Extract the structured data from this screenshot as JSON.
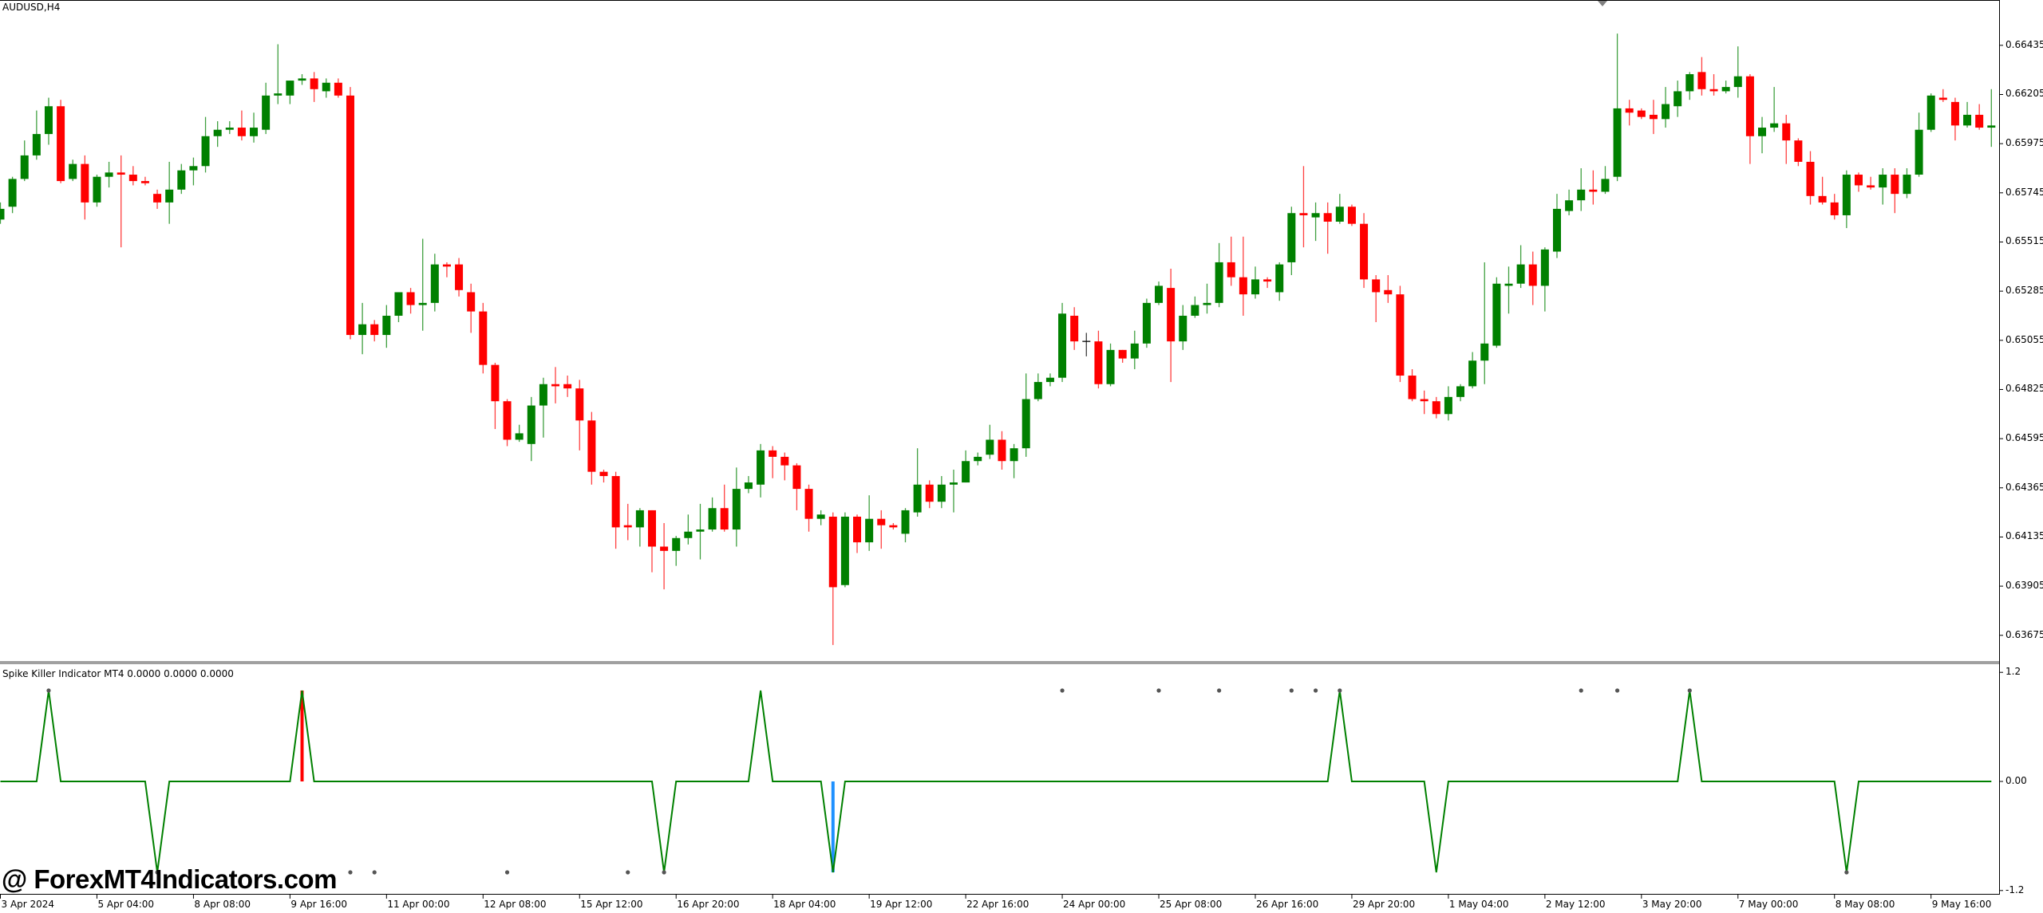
{
  "header": {
    "symbol_timeframe": "AUDUSD,H4"
  },
  "indicator": {
    "title": "Spike Killer Indicator MT4 0.0000 0.0000 0.0000"
  },
  "watermark": "@ ForexMT4Indicators.com",
  "colors": {
    "bull": "#008000",
    "bear": "#ff0000",
    "doji": "#000000",
    "indicator_line": "#008000",
    "hist_up": "#ff0000",
    "hist_down": "#1e90ff",
    "dots": "#555555",
    "axis": "#000000"
  },
  "chart_data": [
    {
      "type": "candlestick",
      "title": "AUDUSD,H4",
      "ylim": [
        0.63551,
        0.66647
      ],
      "grid": false,
      "price_ticks": [
        "0.66435",
        "0.66205",
        "0.65975",
        "0.65745",
        "0.65515",
        "0.65285",
        "0.65055",
        "0.64825",
        "0.64595",
        "0.64365",
        "0.64135",
        "0.63905",
        "0.63675"
      ],
      "time_labels": [
        "3 Apr 2024",
        "5 Apr 04:00",
        "8 Apr 08:00",
        "9 Apr 16:00",
        "11 Apr 00:00",
        "12 Apr 08:00",
        "15 Apr 12:00",
        "16 Apr 20:00",
        "18 Apr 04:00",
        "19 Apr 12:00",
        "22 Apr 16:00",
        "24 Apr 00:00",
        "25 Apr 08:00",
        "26 Apr 16:00",
        "29 Apr 20:00",
        "1 May 04:00",
        "2 May 12:00",
        "3 May 20:00",
        "7 May 00:00",
        "8 May 08:00",
        "9 May 16:00"
      ],
      "time_label_every_n_bars": 8,
      "ohlc_order": [
        "open",
        "high",
        "low",
        "close"
      ],
      "ohlc": [
        [
          0.6562,
          0.657,
          0.656,
          0.6567
        ],
        [
          0.6568,
          0.6582,
          0.6565,
          0.6581
        ],
        [
          0.6581,
          0.6599,
          0.658,
          0.6592
        ],
        [
          0.6592,
          0.6613,
          0.659,
          0.6602
        ],
        [
          0.6602,
          0.6619,
          0.6597,
          0.6615
        ],
        [
          0.6615,
          0.6618,
          0.6579,
          0.658
        ],
        [
          0.6581,
          0.659,
          0.658,
          0.6588
        ],
        [
          0.6588,
          0.6592,
          0.6562,
          0.657
        ],
        [
          0.657,
          0.6583,
          0.6568,
          0.6582
        ],
        [
          0.6582,
          0.6589,
          0.6577,
          0.6584
        ],
        [
          0.6584,
          0.6592,
          0.6549,
          0.6583
        ],
        [
          0.6583,
          0.6587,
          0.6578,
          0.658
        ],
        [
          0.658,
          0.6582,
          0.6578,
          0.6579
        ],
        [
          0.6574,
          0.6576,
          0.6567,
          0.657
        ],
        [
          0.657,
          0.6589,
          0.656,
          0.6576
        ],
        [
          0.6576,
          0.6588,
          0.6574,
          0.6585
        ],
        [
          0.6585,
          0.6591,
          0.6578,
          0.6587
        ],
        [
          0.6587,
          0.661,
          0.6584,
          0.6601
        ],
        [
          0.6601,
          0.6608,
          0.6596,
          0.6604
        ],
        [
          0.6604,
          0.6608,
          0.6602,
          0.6605
        ],
        [
          0.6605,
          0.6613,
          0.6599,
          0.6601
        ],
        [
          0.6601,
          0.6612,
          0.6598,
          0.6605
        ],
        [
          0.6604,
          0.6626,
          0.6602,
          0.662
        ],
        [
          0.662,
          0.6644,
          0.6616,
          0.6621
        ],
        [
          0.662,
          0.6627,
          0.6616,
          0.6627
        ],
        [
          0.6627,
          0.663,
          0.6625,
          0.6628
        ],
        [
          0.6628,
          0.6631,
          0.6617,
          0.6623
        ],
        [
          0.6622,
          0.6628,
          0.6619,
          0.6626
        ],
        [
          0.6626,
          0.6628,
          0.6619,
          0.662
        ],
        [
          0.662,
          0.6624,
          0.6506,
          0.6508
        ],
        [
          0.6508,
          0.6523,
          0.6499,
          0.6513
        ],
        [
          0.6513,
          0.6515,
          0.6505,
          0.6508
        ],
        [
          0.6508,
          0.6522,
          0.6502,
          0.6517
        ],
        [
          0.6517,
          0.6528,
          0.6514,
          0.6528
        ],
        [
          0.6528,
          0.653,
          0.6518,
          0.6522
        ],
        [
          0.6522,
          0.6553,
          0.651,
          0.6523
        ],
        [
          0.6523,
          0.6546,
          0.6519,
          0.6541
        ],
        [
          0.6541,
          0.6542,
          0.6535,
          0.654
        ],
        [
          0.6541,
          0.6544,
          0.6526,
          0.6529
        ],
        [
          0.6528,
          0.6532,
          0.6509,
          0.6519
        ],
        [
          0.6519,
          0.6523,
          0.649,
          0.6494
        ],
        [
          0.6494,
          0.6495,
          0.6464,
          0.6477
        ],
        [
          0.6477,
          0.6478,
          0.6456,
          0.6459
        ],
        [
          0.6459,
          0.6466,
          0.6458,
          0.6462
        ],
        [
          0.6457,
          0.6479,
          0.6449,
          0.6475
        ],
        [
          0.6475,
          0.6488,
          0.646,
          0.6485
        ],
        [
          0.6485,
          0.6493,
          0.6476,
          0.6484
        ],
        [
          0.6485,
          0.6489,
          0.6479,
          0.6483
        ],
        [
          0.6483,
          0.6487,
          0.6454,
          0.6468
        ],
        [
          0.6468,
          0.6472,
          0.6438,
          0.6444
        ],
        [
          0.6444,
          0.6445,
          0.6439,
          0.6442
        ],
        [
          0.6442,
          0.6444,
          0.6408,
          0.6418
        ],
        [
          0.6419,
          0.6429,
          0.6412,
          0.6418
        ],
        [
          0.6418,
          0.6427,
          0.6409,
          0.6426
        ],
        [
          0.6426,
          0.6426,
          0.6397,
          0.6409
        ],
        [
          0.6409,
          0.642,
          0.6389,
          0.6407
        ],
        [
          0.6407,
          0.6414,
          0.64,
          0.6413
        ],
        [
          0.6413,
          0.6424,
          0.641,
          0.6416
        ],
        [
          0.6416,
          0.6429,
          0.6403,
          0.6417
        ],
        [
          0.6417,
          0.6432,
          0.6416,
          0.6427
        ],
        [
          0.6427,
          0.6438,
          0.6416,
          0.6417
        ],
        [
          0.6417,
          0.6446,
          0.6409,
          0.6436
        ],
        [
          0.6436,
          0.6442,
          0.6434,
          0.6439
        ],
        [
          0.6438,
          0.6457,
          0.6432,
          0.6454
        ],
        [
          0.6454,
          0.6456,
          0.6441,
          0.6451
        ],
        [
          0.6451,
          0.6453,
          0.644,
          0.6447
        ],
        [
          0.6447,
          0.6448,
          0.6426,
          0.6436
        ],
        [
          0.6436,
          0.6438,
          0.6416,
          0.6422
        ],
        [
          0.6422,
          0.6426,
          0.6419,
          0.6424
        ],
        [
          0.6423,
          0.6425,
          0.6363,
          0.639
        ],
        [
          0.6391,
          0.6425,
          0.639,
          0.6423
        ],
        [
          0.6423,
          0.6424,
          0.6406,
          0.6411
        ],
        [
          0.6411,
          0.6433,
          0.6407,
          0.6422
        ],
        [
          0.6422,
          0.6426,
          0.6408,
          0.6419
        ],
        [
          0.6419,
          0.642,
          0.6417,
          0.6418
        ],
        [
          0.6415,
          0.6427,
          0.6411,
          0.6426
        ],
        [
          0.6425,
          0.6455,
          0.6423,
          0.6438
        ],
        [
          0.6438,
          0.644,
          0.6427,
          0.643
        ],
        [
          0.643,
          0.6442,
          0.6427,
          0.6438
        ],
        [
          0.6438,
          0.6445,
          0.6425,
          0.6439
        ],
        [
          0.6439,
          0.6454,
          0.6439,
          0.6449
        ],
        [
          0.6449,
          0.6453,
          0.6447,
          0.6451
        ],
        [
          0.6452,
          0.6466,
          0.645,
          0.6459
        ],
        [
          0.6459,
          0.6463,
          0.6445,
          0.6449
        ],
        [
          0.6449,
          0.6457,
          0.6441,
          0.6455
        ],
        [
          0.6455,
          0.649,
          0.6451,
          0.6478
        ],
        [
          0.6478,
          0.649,
          0.6477,
          0.6486
        ],
        [
          0.6486,
          0.649,
          0.6484,
          0.6488
        ],
        [
          0.6488,
          0.6523,
          0.6486,
          0.6518
        ],
        [
          0.6517,
          0.6521,
          0.6501,
          0.6505
        ],
        [
          0.6505,
          0.6509,
          0.6498,
          0.6505
        ],
        [
          0.6505,
          0.651,
          0.6483,
          0.6485
        ],
        [
          0.6485,
          0.6504,
          0.6484,
          0.6501
        ],
        [
          0.6501,
          0.6501,
          0.6495,
          0.6497
        ],
        [
          0.6497,
          0.651,
          0.6492,
          0.6504
        ],
        [
          0.6504,
          0.6525,
          0.6502,
          0.6523
        ],
        [
          0.6523,
          0.6533,
          0.6522,
          0.6531
        ],
        [
          0.653,
          0.6539,
          0.6486,
          0.6505
        ],
        [
          0.6505,
          0.6522,
          0.6501,
          0.6517
        ],
        [
          0.6517,
          0.6526,
          0.6516,
          0.6522
        ],
        [
          0.6522,
          0.6532,
          0.6518,
          0.6523
        ],
        [
          0.6523,
          0.6551,
          0.6521,
          0.6542
        ],
        [
          0.6542,
          0.6554,
          0.6531,
          0.6535
        ],
        [
          0.6535,
          0.6554,
          0.6517,
          0.6527
        ],
        [
          0.6527,
          0.654,
          0.6525,
          0.6534
        ],
        [
          0.6534,
          0.6535,
          0.653,
          0.6533
        ],
        [
          0.6528,
          0.6542,
          0.6524,
          0.6541
        ],
        [
          0.6542,
          0.6568,
          0.6536,
          0.6565
        ],
        [
          0.6565,
          0.6587,
          0.6549,
          0.6564
        ],
        [
          0.6563,
          0.657,
          0.6552,
          0.6565
        ],
        [
          0.6565,
          0.657,
          0.6546,
          0.6561
        ],
        [
          0.6561,
          0.6574,
          0.656,
          0.6568
        ],
        [
          0.6568,
          0.6569,
          0.6559,
          0.656
        ],
        [
          0.656,
          0.6565,
          0.653,
          0.6534
        ],
        [
          0.6534,
          0.6536,
          0.6514,
          0.6528
        ],
        [
          0.6529,
          0.6536,
          0.6523,
          0.6527
        ],
        [
          0.6527,
          0.6531,
          0.6486,
          0.6489
        ],
        [
          0.6489,
          0.6492,
          0.6477,
          0.6478
        ],
        [
          0.6478,
          0.6482,
          0.6471,
          0.6477
        ],
        [
          0.6477,
          0.6479,
          0.6469,
          0.6471
        ],
        [
          0.6471,
          0.6484,
          0.6468,
          0.6479
        ],
        [
          0.6479,
          0.6485,
          0.6477,
          0.6484
        ],
        [
          0.6484,
          0.65,
          0.6483,
          0.6496
        ],
        [
          0.6496,
          0.6542,
          0.6485,
          0.6504
        ],
        [
          0.6503,
          0.6535,
          0.6502,
          0.6532
        ],
        [
          0.6531,
          0.654,
          0.6518,
          0.6532
        ],
        [
          0.6532,
          0.655,
          0.653,
          0.6541
        ],
        [
          0.6541,
          0.6547,
          0.6522,
          0.6531
        ],
        [
          0.6531,
          0.6549,
          0.6519,
          0.6548
        ],
        [
          0.6547,
          0.6574,
          0.6544,
          0.6567
        ],
        [
          0.6566,
          0.6576,
          0.6564,
          0.6571
        ],
        [
          0.6571,
          0.6586,
          0.6566,
          0.6576
        ],
        [
          0.6576,
          0.6585,
          0.6569,
          0.6575
        ],
        [
          0.6575,
          0.6587,
          0.6574,
          0.6581
        ],
        [
          0.6582,
          0.6649,
          0.658,
          0.6614
        ],
        [
          0.6614,
          0.6618,
          0.6606,
          0.6612
        ],
        [
          0.6613,
          0.6614,
          0.6609,
          0.661
        ],
        [
          0.6611,
          0.6618,
          0.6602,
          0.6609
        ],
        [
          0.6609,
          0.6624,
          0.6605,
          0.6616
        ],
        [
          0.6615,
          0.6627,
          0.661,
          0.6622
        ],
        [
          0.6622,
          0.6631,
          0.6618,
          0.663
        ],
        [
          0.6631,
          0.6638,
          0.662,
          0.6623
        ],
        [
          0.6623,
          0.663,
          0.662,
          0.6622
        ],
        [
          0.6622,
          0.6627,
          0.6621,
          0.6624
        ],
        [
          0.6624,
          0.6643,
          0.6619,
          0.6629
        ],
        [
          0.6629,
          0.663,
          0.6588,
          0.6601
        ],
        [
          0.6601,
          0.661,
          0.6593,
          0.6605
        ],
        [
          0.6605,
          0.6624,
          0.6603,
          0.6607
        ],
        [
          0.6607,
          0.6611,
          0.6588,
          0.6599
        ],
        [
          0.6599,
          0.66,
          0.6587,
          0.6589
        ],
        [
          0.6589,
          0.6594,
          0.6569,
          0.6573
        ],
        [
          0.6573,
          0.6582,
          0.6569,
          0.657
        ],
        [
          0.657,
          0.6574,
          0.6562,
          0.6564
        ],
        [
          0.6564,
          0.6585,
          0.6558,
          0.6583
        ],
        [
          0.6583,
          0.6584,
          0.6575,
          0.6578
        ],
        [
          0.6578,
          0.6582,
          0.6576,
          0.6577
        ],
        [
          0.6577,
          0.6586,
          0.6569,
          0.6583
        ],
        [
          0.6583,
          0.6586,
          0.6565,
          0.6574
        ],
        [
          0.6574,
          0.6586,
          0.6572,
          0.6583
        ],
        [
          0.6583,
          0.6612,
          0.6582,
          0.6604
        ],
        [
          0.6604,
          0.6621,
          0.6603,
          0.662
        ],
        [
          0.6619,
          0.6623,
          0.6617,
          0.6618
        ],
        [
          0.6617,
          0.6619,
          0.6599,
          0.6606
        ],
        [
          0.6606,
          0.6617,
          0.6605,
          0.6611
        ],
        [
          0.6611,
          0.6616,
          0.6604,
          0.6605
        ],
        [
          0.6605,
          0.6623,
          0.6596,
          0.6606
        ]
      ]
    },
    {
      "type": "line",
      "title": "Spike Killer Indicator MT4 0.0000 0.0000 0.0000",
      "ylim": [
        -1.2,
        1.2
      ],
      "y_ticks": [
        "1.2",
        "0.00",
        "-1.2"
      ],
      "baseline": 0,
      "up_spike_bars": [
        4,
        25,
        63,
        111,
        140
      ],
      "down_spike_bars": [
        13,
        55,
        69,
        119,
        153
      ],
      "spike_value": 1,
      "histogram_up_bars": [
        25
      ],
      "histogram_down_bars": [
        69
      ],
      "top_dot_bars": [
        4,
        88,
        96,
        101,
        107,
        109,
        111,
        131,
        134,
        140
      ],
      "bottom_dot_bars": [
        13,
        29,
        31,
        42,
        52,
        55,
        153
      ]
    }
  ]
}
